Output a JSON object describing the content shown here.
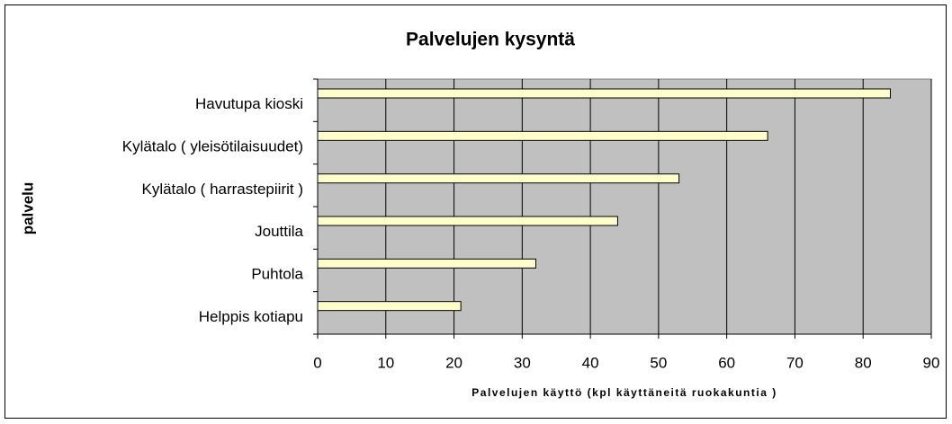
{
  "chart_data": {
    "type": "bar",
    "orientation": "horizontal",
    "title": "Palvelujen kysyntä",
    "x_label": "Palvelujen käyttö (kpl käyttäneitä ruokakuntia )",
    "y_label": "palvelu",
    "categories": [
      "Havutupa kioski",
      "Kylätalo ( yleisötilaisuudet)",
      "Kylätalo ( harrastepiirit )",
      "Jouttila",
      "Puhtola",
      "Helppis kotiapu"
    ],
    "values": [
      84,
      66,
      53,
      44,
      32,
      21
    ],
    "color": "#ffffcc",
    "xlim": [
      0,
      90
    ],
    "xticks": [
      0,
      10,
      20,
      30,
      40,
      50,
      60,
      70,
      80,
      90
    ],
    "grid": true
  }
}
